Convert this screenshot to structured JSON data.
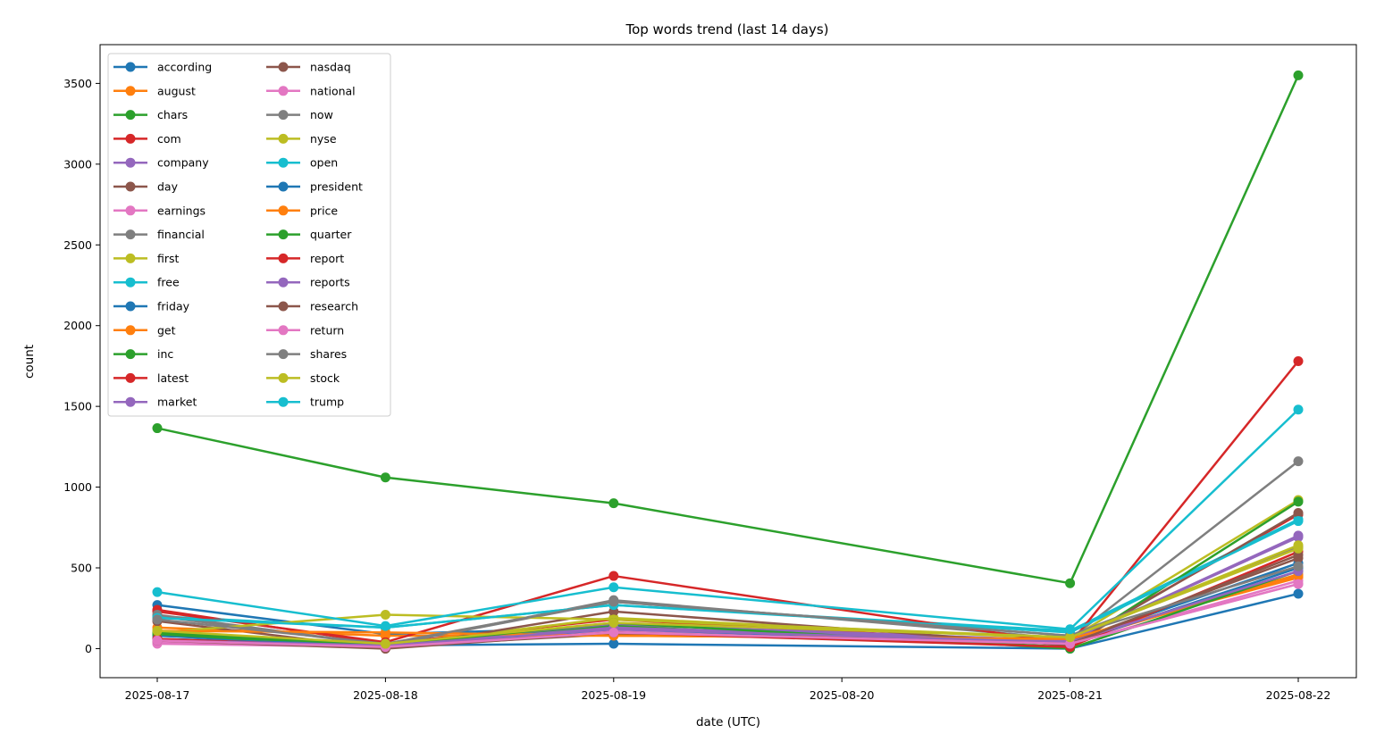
{
  "chart_data": {
    "type": "line",
    "title": "Top words trend (last 14 days)",
    "xlabel": "date (UTC)",
    "ylabel": "count",
    "x": [
      "2025-08-17",
      "2025-08-18",
      "2025-08-19",
      "2025-08-20",
      "2025-08-21",
      "2025-08-22"
    ],
    "x_ticks": [
      "2025-08-17",
      "2025-08-18",
      "2025-08-19",
      "2025-08-20",
      "2025-08-21",
      "2025-08-22"
    ],
    "y_ticks": [
      0,
      500,
      1000,
      1500,
      2000,
      2500,
      3000,
      3500
    ],
    "ylim": [
      -180,
      3740
    ],
    "grid": false,
    "legend": "upper left",
    "series": [
      {
        "name": "according",
        "color": "#1f77b4",
        "values": [
          270,
          90,
          130,
          null,
          40,
          530
        ]
      },
      {
        "name": "august",
        "color": "#ff7f0e",
        "values": [
          100,
          10,
          110,
          null,
          40,
          460
        ]
      },
      {
        "name": "chars",
        "color": "#2ca02c",
        "values": [
          1365,
          1060,
          900,
          null,
          405,
          3550
        ]
      },
      {
        "name": "com",
        "color": "#d62728",
        "values": [
          240,
          30,
          180,
          null,
          30,
          830
        ]
      },
      {
        "name": "company",
        "color": "#9467bd",
        "values": [
          60,
          20,
          150,
          null,
          50,
          700
        ]
      },
      {
        "name": "day",
        "color": "#8c564b",
        "values": [
          50,
          10,
          90,
          null,
          40,
          560
        ]
      },
      {
        "name": "earnings",
        "color": "#e377c2",
        "values": [
          30,
          10,
          110,
          null,
          30,
          400
        ]
      },
      {
        "name": "financial",
        "color": "#7f7f7f",
        "values": [
          200,
          20,
          300,
          null,
          60,
          1160
        ]
      },
      {
        "name": "first",
        "color": "#bcbd22",
        "values": [
          110,
          20,
          190,
          null,
          60,
          920
        ]
      },
      {
        "name": "free",
        "color": "#17becf",
        "values": [
          200,
          130,
          270,
          null,
          110,
          800
        ]
      },
      {
        "name": "friday",
        "color": "#1f77b4",
        "values": [
          80,
          10,
          120,
          null,
          30,
          500
        ]
      },
      {
        "name": "get",
        "color": "#ff7f0e",
        "values": [
          130,
          80,
          80,
          null,
          60,
          440
        ]
      },
      {
        "name": "inc",
        "color": "#2ca02c",
        "values": [
          90,
          10,
          140,
          null,
          10,
          910
        ]
      },
      {
        "name": "latest",
        "color": "#d62728",
        "values": [
          230,
          40,
          450,
          null,
          30,
          1780
        ]
      },
      {
        "name": "market",
        "color": "#9467bd",
        "values": [
          60,
          20,
          130,
          null,
          50,
          690
        ]
      },
      {
        "name": "nasdaq",
        "color": "#8c564b",
        "values": [
          170,
          0,
          230,
          null,
          20,
          840
        ]
      },
      {
        "name": "national",
        "color": "#e377c2",
        "values": [
          40,
          10,
          100,
          null,
          30,
          420
        ]
      },
      {
        "name": "now",
        "color": "#7f7f7f",
        "values": [
          210,
          20,
          290,
          null,
          80,
          630
        ]
      },
      {
        "name": "nyse",
        "color": "#bcbd22",
        "values": [
          100,
          210,
          180,
          null,
          70,
          640
        ]
      },
      {
        "name": "open",
        "color": "#17becf",
        "values": [
          190,
          130,
          270,
          null,
          100,
          790
        ]
      },
      {
        "name": "president",
        "color": "#1f77b4",
        "values": [
          60,
          20,
          30,
          null,
          0,
          340
        ]
      },
      {
        "name": "price",
        "color": "#ff7f0e",
        "values": [
          110,
          100,
          80,
          null,
          60,
          450
        ]
      },
      {
        "name": "quarter",
        "color": "#2ca02c",
        "values": [
          100,
          20,
          160,
          null,
          0,
          480
        ]
      },
      {
        "name": "report",
        "color": "#d62728",
        "values": [
          60,
          10,
          100,
          null,
          10,
          600
        ]
      },
      {
        "name": "reports",
        "color": "#9467bd",
        "values": [
          50,
          20,
          120,
          null,
          40,
          480
        ]
      },
      {
        "name": "research",
        "color": "#8c564b",
        "values": [
          50,
          0,
          100,
          null,
          30,
          580
        ]
      },
      {
        "name": "return",
        "color": "#e377c2",
        "values": [
          50,
          10,
          100,
          null,
          30,
          400
        ]
      },
      {
        "name": "shares",
        "color": "#7f7f7f",
        "values": [
          180,
          30,
          290,
          null,
          80,
          510
        ]
      },
      {
        "name": "stock",
        "color": "#bcbd22",
        "values": [
          110,
          30,
          160,
          null,
          70,
          620
        ]
      },
      {
        "name": "trump",
        "color": "#17becf",
        "values": [
          350,
          140,
          380,
          null,
          120,
          1480
        ]
      }
    ]
  }
}
